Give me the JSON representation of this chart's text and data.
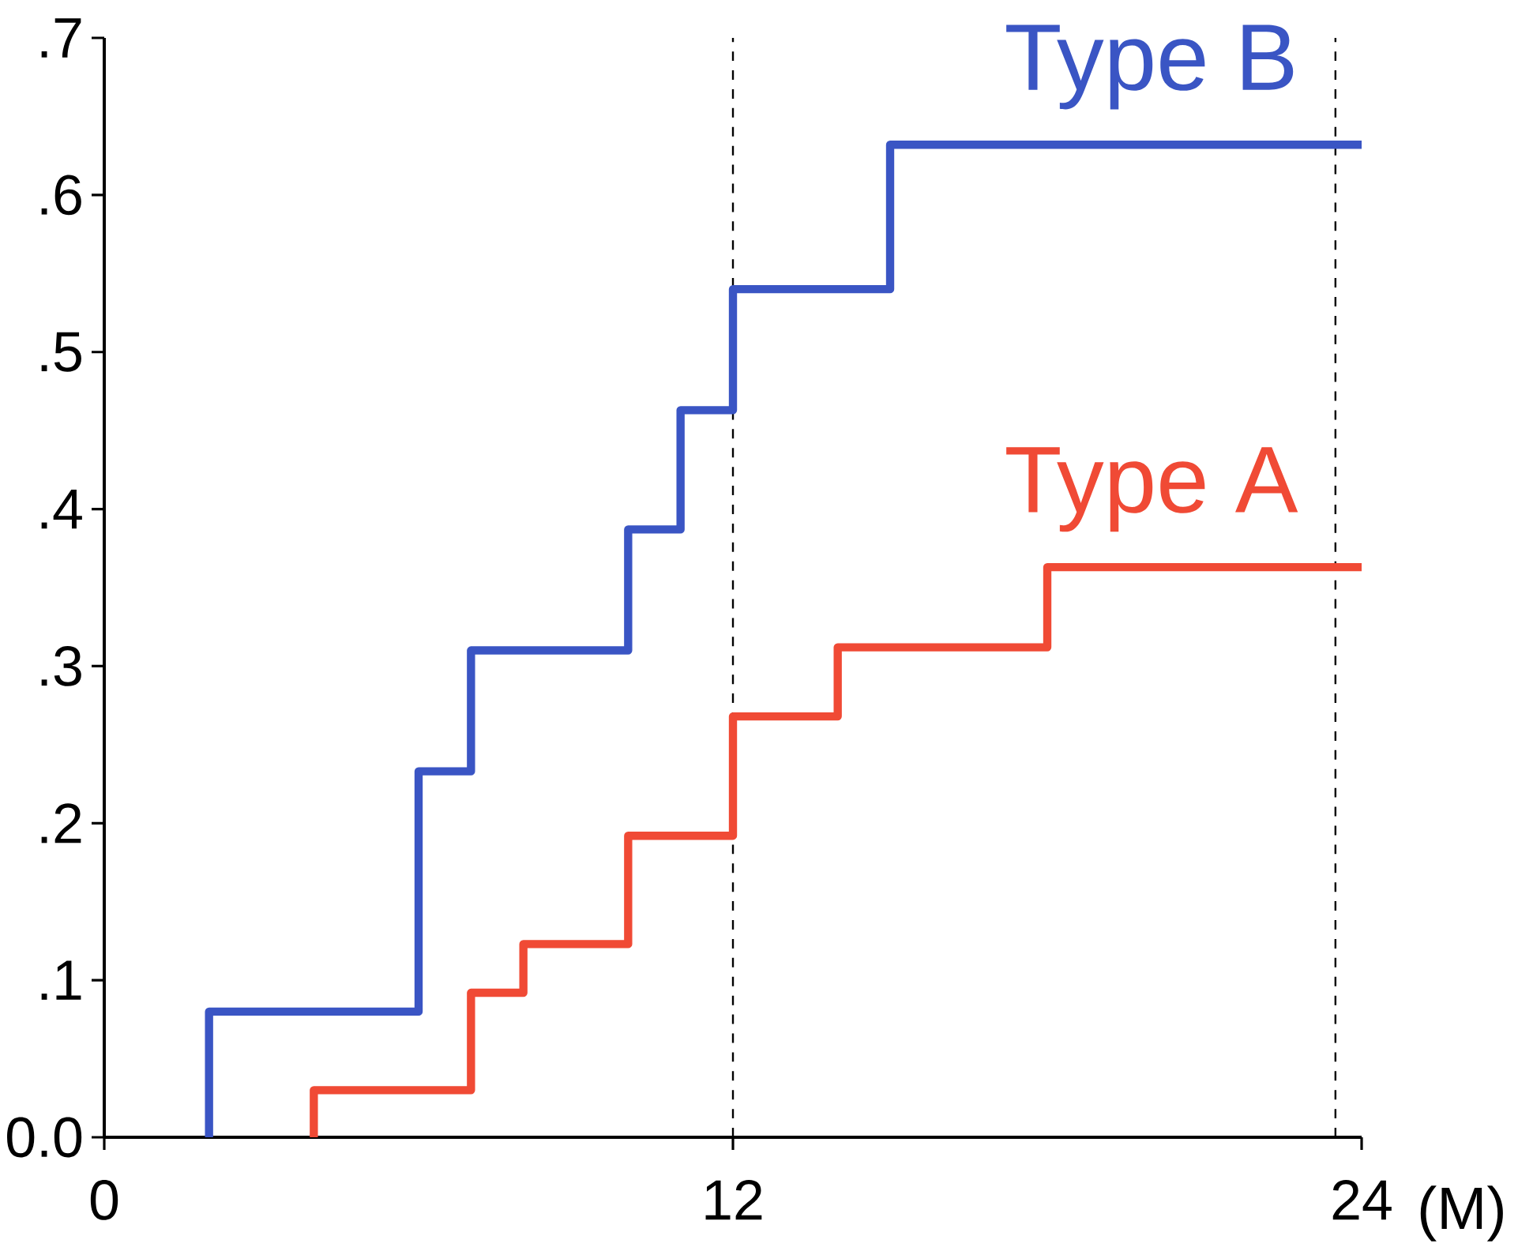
{
  "chart_data": {
    "type": "step",
    "xlabel": "(M)",
    "xlim": [
      0,
      24
    ],
    "ylim": [
      0,
      0.7
    ],
    "xticks": [
      0,
      12,
      24
    ],
    "yticks": [
      {
        "value": 0,
        "label": "0.0"
      },
      {
        "value": 0.1,
        "label": ".1"
      },
      {
        "value": 0.2,
        "label": ".2"
      },
      {
        "value": 0.3,
        "label": ".3"
      },
      {
        "value": 0.4,
        "label": ".4"
      },
      {
        "value": 0.5,
        "label": ".5"
      },
      {
        "value": 0.6,
        "label": ".6"
      },
      {
        "value": 0.7,
        "label": ".7"
      }
    ],
    "series": [
      {
        "name": "Type B",
        "color": "#3a55c4",
        "x": [
          2,
          2,
          6,
          7,
          10,
          11,
          12,
          15,
          24
        ],
        "values": [
          0,
          0.08,
          0.233,
          0.31,
          0.387,
          0.463,
          0.54,
          0.632,
          0.632
        ]
      },
      {
        "name": "Type A",
        "color": "#f04a35",
        "x": [
          4,
          4,
          7,
          8,
          10,
          12,
          14,
          18,
          24
        ],
        "values": [
          0,
          0.03,
          0.092,
          0.123,
          0.192,
          0.268,
          0.312,
          0.363,
          0.363
        ]
      }
    ],
    "ref_lines": [
      {
        "axis": "x",
        "value": 12
      },
      {
        "axis": "x",
        "value": 23.5
      }
    ]
  }
}
